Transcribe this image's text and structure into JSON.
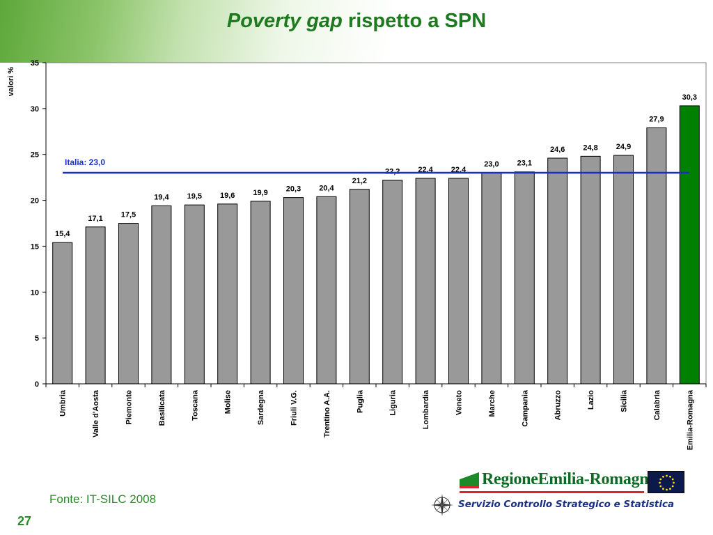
{
  "slide": {
    "title_italic": "Poverty gap",
    "title_rest": " rispetto a SPN",
    "source": "Fonte: IT-SILC 2008",
    "page_number": "27"
  },
  "logos": {
    "region_name": "RegioneEmilia-Romagna",
    "service_name": "Servizio Controllo Strategico e Statistica",
    "icons": [
      "region-logo-icon",
      "eu-flag-icon",
      "compass-rose-icon"
    ]
  },
  "colors": {
    "bar": "#999999",
    "highlight_bar": "#008000",
    "reference_line": "#1a2fc8",
    "title": "#1f7a1f"
  },
  "chart_data": {
    "type": "bar",
    "ylabel": "valori %",
    "ylim": [
      0,
      35
    ],
    "yticks": [
      0,
      5,
      10,
      15,
      20,
      25,
      30,
      35
    ],
    "categories": [
      "Umbria",
      "Valle d'Aosta",
      "Piemonte",
      "Basilicata",
      "Toscana",
      "Molise",
      "Sardegna",
      "Friuli V.G.",
      "Trentino A.A.",
      "Puglia",
      "Liguria",
      "Lombardia",
      "Veneto",
      "Marche",
      "Campania",
      "Abruzzo",
      "Lazio",
      "Sicilia",
      "Calabria",
      "Emilia-Romagna"
    ],
    "values": [
      15.4,
      17.1,
      17.5,
      19.4,
      19.5,
      19.6,
      19.9,
      20.3,
      20.4,
      21.2,
      22.2,
      22.4,
      22.4,
      23.0,
      23.1,
      24.6,
      24.8,
      24.9,
      27.9,
      30.3
    ],
    "value_labels": [
      "15,4",
      "17,1",
      "17,5",
      "19,4",
      "19,5",
      "19,6",
      "19,9",
      "20,3",
      "20,4",
      "21,2",
      "22,2",
      "22,4",
      "22,4",
      "23,0",
      "23,1",
      "24,6",
      "24,8",
      "24,9",
      "27,9",
      "30,3"
    ],
    "highlight_category": "Emilia-Romagna",
    "reference_line": {
      "value": 23.0,
      "label": "Italia: 23,0"
    },
    "grid": false,
    "legend": "none"
  }
}
